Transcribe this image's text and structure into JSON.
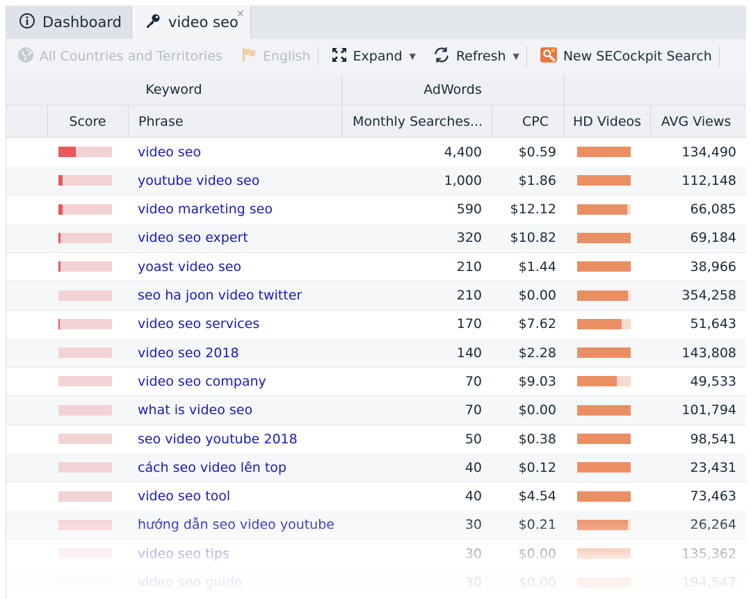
{
  "tabs": [
    {
      "label": "Dashboard",
      "icon": "info-circle-icon"
    },
    {
      "label": "video seo",
      "icon": "key-icon",
      "close": "×"
    }
  ],
  "toolbar": {
    "country": "All Countries and Territories",
    "language": "English",
    "expand": "Expand",
    "refresh": "Refresh",
    "new_search": "New SECockpit Search"
  },
  "groups": {
    "keyword": "Keyword",
    "adwords": "AdWords"
  },
  "columns": {
    "score": "Score",
    "phrase": "Phrase",
    "monthly": "Monthly Searches...",
    "cpc": "CPC",
    "hd": "HD Videos",
    "views": "AVG Views"
  },
  "colors": {
    "score_fill": "#e8585b",
    "score_bg": "#f3d2d3",
    "hd_fill": "#ea8f64",
    "hd_bg": "#f6dcd0",
    "link": "#1a1ab8"
  },
  "rows": [
    {
      "phrase": "video seo",
      "monthly": "4,400",
      "cpc": "$0.59",
      "views": "134,490",
      "score": 0.32,
      "hd": 1.0
    },
    {
      "phrase": "youtube video seo",
      "monthly": "1,000",
      "cpc": "$1.86",
      "views": "112,148",
      "score": 0.08,
      "hd": 1.0
    },
    {
      "phrase": "video marketing seo",
      "monthly": "590",
      "cpc": "$12.12",
      "views": "66,085",
      "score": 0.08,
      "hd": 0.94
    },
    {
      "phrase": "video seo expert",
      "monthly": "320",
      "cpc": "$10.82",
      "views": "69,184",
      "score": 0.04,
      "hd": 1.0
    },
    {
      "phrase": "yoast video seo",
      "monthly": "210",
      "cpc": "$1.44",
      "views": "38,966",
      "score": 0.04,
      "hd": 1.0
    },
    {
      "phrase": "seo ha joon video twitter",
      "monthly": "210",
      "cpc": "$0.00",
      "views": "354,258",
      "score": 0.0,
      "hd": 0.95
    },
    {
      "phrase": "video seo services",
      "monthly": "170",
      "cpc": "$7.62",
      "views": "51,643",
      "score": 0.02,
      "hd": 0.83
    },
    {
      "phrase": "video seo 2018",
      "monthly": "140",
      "cpc": "$2.28",
      "views": "143,808",
      "score": 0.0,
      "hd": 1.0
    },
    {
      "phrase": "video seo company",
      "monthly": "70",
      "cpc": "$9.03",
      "views": "49,533",
      "score": 0.0,
      "hd": 0.74
    },
    {
      "phrase": "what is video seo",
      "monthly": "70",
      "cpc": "$0.00",
      "views": "101,794",
      "score": 0.0,
      "hd": 1.0
    },
    {
      "phrase": "seo video youtube 2018",
      "monthly": "50",
      "cpc": "$0.38",
      "views": "98,541",
      "score": 0.0,
      "hd": 1.0
    },
    {
      "phrase": "cách seo video lên top",
      "monthly": "40",
      "cpc": "$0.12",
      "views": "23,431",
      "score": 0.0,
      "hd": 1.0
    },
    {
      "phrase": "video seo tool",
      "monthly": "40",
      "cpc": "$4.54",
      "views": "73,463",
      "score": 0.0,
      "hd": 1.0
    },
    {
      "phrase": "hướng dẫn seo video youtube",
      "monthly": "30",
      "cpc": "$0.21",
      "views": "26,264",
      "score": 0.0,
      "hd": 0.95
    },
    {
      "phrase": "video seo tips",
      "monthly": "30",
      "cpc": "$0.00",
      "views": "135,362",
      "score": 0.0,
      "hd": 1.0
    },
    {
      "phrase": "video seo guide",
      "monthly": "30",
      "cpc": "$0.00",
      "views": "194,547",
      "score": 0.0,
      "hd": 1.0
    }
  ]
}
